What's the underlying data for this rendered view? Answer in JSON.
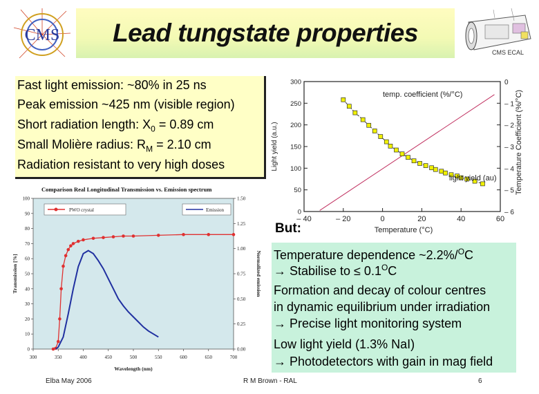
{
  "slide": {
    "title": "Lead tungstate properties",
    "logo_text": "CMS",
    "ecal_label": "CMS ECAL"
  },
  "properties": {
    "lines": [
      {
        "text": "Fast light emission:   ~80% in 25 ns"
      },
      {
        "text": "Peak emission ~425 nm (visible region)"
      },
      {
        "pre": "Short radiation length:  X",
        "sub": "0",
        "post": " = 0.89 cm"
      },
      {
        "text": "Small Molière radius:   R",
        "sub": "M",
        "post": " = 2.10 cm"
      },
      {
        "text": "Radiation resistant to very high doses"
      }
    ]
  },
  "notes": {
    "but_label": "But:",
    "lines": [
      {
        "pre": "Temperature dependence ~2.2%/",
        "sup": "O",
        "post": "C"
      },
      {
        "pre": "→ Stabilise to ≤ 0.1",
        "sup": "O",
        "post": "C"
      },
      {
        "text": "Formation and decay of colour centres"
      },
      {
        "text": "in dynamic equilibrium under irradiation"
      },
      {
        "text": "→ Precise  light monitoring system"
      },
      {
        "text": "Low light yield (1.3% NaI)"
      },
      {
        "text": "→ Photodetectors with gain in mag field"
      }
    ]
  },
  "footer": {
    "left": "Elba May 2006",
    "center": "R M Brown - RAL",
    "page": "6"
  },
  "colors": {
    "title_bg": "#f3fab4",
    "props_bg": "#ffffc6",
    "notes_bg": "#c8f2dc",
    "transmission_red": "#e03030",
    "emission_blue": "#2030a0",
    "temp_line": "#c03060",
    "yield_marker": "#f0f000"
  },
  "chart_data": [
    {
      "type": "scatter",
      "title": "",
      "xlabel": "Temperature (°C)",
      "ylabel": "Light yield (a.u.)",
      "y2label": "Temperature Coefficient (%/°C)",
      "xlim": [
        -40,
        60
      ],
      "ylim": [
        0,
        300
      ],
      "y2lim": [
        -6,
        0
      ],
      "xticks": [
        -40,
        -20,
        0,
        20,
        40,
        60
      ],
      "xtick_labels": [
        "– 40",
        "– 20",
        "0",
        "20",
        "40",
        "60"
      ],
      "yticks": [
        0,
        50,
        100,
        150,
        200,
        250,
        300
      ],
      "y2ticks": [
        0,
        -1,
        -2,
        -3,
        -4,
        -5,
        -6
      ],
      "y2tick_labels": [
        "0",
        "– 1",
        "– 2",
        "– 3",
        "– 4",
        "– 5",
        "– 6"
      ],
      "annotations": [
        "temp. coefficient (%/°C)",
        "light yield (au)"
      ],
      "series": [
        {
          "name": "light yield (au)",
          "x": [
            -20,
            -17,
            -14,
            -10,
            -7,
            -4,
            -1,
            2,
            4,
            7,
            10,
            13,
            16,
            19,
            22,
            25,
            27,
            30,
            32,
            35,
            38,
            40,
            43,
            47,
            51
          ],
          "y": [
            258,
            243,
            228,
            212,
            199,
            186,
            173,
            161,
            151,
            142,
            133,
            125,
            117,
            111,
            106,
            101,
            97,
            93,
            89,
            85,
            82,
            78,
            75,
            70,
            64
          ]
        },
        {
          "name": "temp. coefficient (%/°C)",
          "x": [
            -32,
            57
          ],
          "y2": [
            -5.95,
            -0.6
          ]
        }
      ]
    },
    {
      "type": "line",
      "title": "Comparison Real Longitudinal Transmission vs. Emission spectrum",
      "xlabel": "Wavelength (nm)",
      "ylabel": "Transmission [%]",
      "y2label": "Normalized emission",
      "xlim": [
        300,
        700
      ],
      "ylim": [
        0,
        100
      ],
      "y2lim": [
        0,
        1.5
      ],
      "xticks": [
        300,
        350,
        400,
        450,
        500,
        550,
        600,
        650,
        700
      ],
      "yticks": [
        0,
        10,
        20,
        30,
        40,
        50,
        60,
        70,
        80,
        90,
        100
      ],
      "y2ticks": [
        0,
        0.25,
        0.5,
        0.75,
        1.0,
        1.25,
        1.5
      ],
      "y2tick_labels": [
        "0.00",
        "0.25",
        "0.50",
        "0.75",
        "1.00",
        "1.25",
        "1.50"
      ],
      "legend": "top",
      "series": [
        {
          "name": "PWO crystal",
          "x": [
            340,
            345,
            350,
            353,
            356,
            360,
            365,
            370,
            375,
            380,
            390,
            400,
            420,
            440,
            460,
            480,
            500,
            550,
            600,
            650,
            700
          ],
          "y": [
            0,
            0.5,
            5,
            20,
            40,
            55,
            62,
            66,
            68.5,
            70,
            71.5,
            72.5,
            73.5,
            74,
            74.5,
            75,
            75,
            75.5,
            76,
            76,
            76
          ]
        },
        {
          "name": "Emission",
          "x": [
            345,
            350,
            360,
            370,
            380,
            390,
            400,
            410,
            420,
            430,
            440,
            450,
            460,
            470,
            480,
            490,
            500,
            510,
            520,
            530,
            540,
            550
          ],
          "y2": [
            0,
            0.02,
            0.12,
            0.35,
            0.6,
            0.82,
            0.95,
            0.98,
            0.95,
            0.88,
            0.8,
            0.7,
            0.6,
            0.5,
            0.43,
            0.37,
            0.32,
            0.27,
            0.22,
            0.18,
            0.15,
            0.12
          ]
        }
      ]
    }
  ]
}
